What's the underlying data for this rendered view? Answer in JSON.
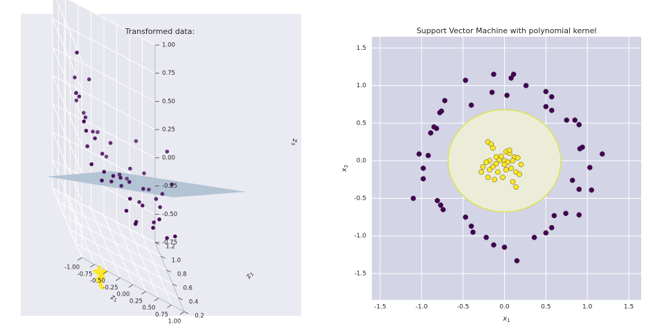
{
  "chart_data": [
    {
      "type": "scatter",
      "title": "Transformed data:",
      "xlabel": "z1",
      "ylabel": "z2",
      "zlabel": "z3",
      "xlim": [
        -1.0,
        1.0
      ],
      "ylim": [
        0.2,
        1.2
      ],
      "zlim": [
        -0.75,
        1.0
      ],
      "x_ticks": [
        "-1.00",
        "-0.75",
        "-0.50",
        "-0.25",
        "0.00",
        "0.25",
        "0.50",
        "0.75",
        "1.00"
      ],
      "y_ticks": [
        "0.2",
        "0.4",
        "0.6",
        "0.8",
        "1.0",
        "1.2"
      ],
      "z_ticks": [
        "1.00",
        "0.75",
        "0.50",
        "0.25",
        "0.00",
        "-0.25",
        "-0.50",
        "-0.75"
      ],
      "grid": true,
      "plane_color": "#a9bdd0",
      "class_colors": {
        "outer": "#440154",
        "inner": "#fde725"
      },
      "outer_points": [
        [
          -0.95,
          0.48,
          0.55
        ],
        [
          -0.9,
          0.3,
          0.42
        ],
        [
          -0.85,
          0.55,
          0.5
        ],
        [
          -0.8,
          0.4,
          0.3
        ],
        [
          -0.7,
          0.6,
          0.32
        ],
        [
          -0.6,
          0.45,
          0.25
        ],
        [
          -0.5,
          0.7,
          0.18
        ],
        [
          -0.78,
          0.25,
          0.1
        ],
        [
          -0.4,
          0.55,
          0.1
        ],
        [
          -0.3,
          0.35,
          0.05
        ],
        [
          -0.2,
          0.62,
          0.2
        ],
        [
          -0.1,
          0.45,
          0.02
        ],
        [
          0.0,
          0.3,
          -0.05
        ],
        [
          0.1,
          0.5,
          0.0
        ],
        [
          0.2,
          0.65,
          0.05
        ],
        [
          0.3,
          0.4,
          -0.1
        ],
        [
          0.4,
          0.55,
          -0.02
        ],
        [
          0.5,
          0.7,
          0.05
        ],
        [
          0.6,
          0.35,
          -0.12
        ],
        [
          0.7,
          0.5,
          -0.08
        ],
        [
          0.8,
          0.6,
          0.0
        ],
        [
          0.9,
          0.45,
          0.2
        ],
        [
          0.95,
          0.7,
          0.35
        ],
        [
          -0.65,
          0.75,
          0.28
        ],
        [
          -0.55,
          0.3,
          -0.02
        ],
        [
          -0.35,
          0.8,
          0.15
        ],
        [
          -0.15,
          0.85,
          -0.05
        ],
        [
          0.05,
          0.75,
          -0.1
        ],
        [
          0.25,
          0.85,
          -0.15
        ],
        [
          0.45,
          0.3,
          -0.2
        ],
        [
          0.65,
          0.8,
          -0.12
        ],
        [
          -0.88,
          0.65,
          0.6
        ],
        [
          -0.72,
          0.5,
          0.12
        ],
        [
          -0.45,
          0.4,
          0.02
        ],
        [
          0.15,
          0.35,
          -0.25
        ],
        [
          0.35,
          0.6,
          -0.18
        ],
        [
          0.55,
          0.45,
          -0.22
        ],
        [
          0.75,
          0.35,
          -0.25
        ],
        [
          -0.25,
          0.5,
          -0.08
        ],
        [
          0.0,
          0.6,
          -0.12
        ],
        [
          -0.98,
          0.4,
          0.95
        ],
        [
          -0.6,
          0.65,
          0.65
        ],
        [
          0.05,
          0.2,
          -0.2
        ],
        [
          0.4,
          0.8,
          0.25
        ],
        [
          -0.1,
          0.25,
          -0.15
        ],
        [
          0.65,
          0.55,
          -0.05
        ],
        [
          -0.82,
          0.7,
          0.38
        ],
        [
          0.85,
          0.25,
          -0.15
        ]
      ],
      "inner_points": [
        [
          -0.5,
          0.5,
          -1.0
        ],
        [
          -0.45,
          0.55,
          -0.98
        ],
        [
          -0.48,
          0.48,
          -1.02
        ],
        [
          -0.42,
          0.52,
          -0.96
        ],
        [
          -0.52,
          0.58,
          -0.99
        ],
        [
          -0.46,
          0.45,
          -1.04
        ],
        [
          -0.4,
          0.56,
          -0.95
        ],
        [
          -0.44,
          0.5,
          -1.0
        ],
        [
          -0.49,
          0.53,
          -0.97
        ],
        [
          -0.47,
          0.47,
          -1.03
        ],
        [
          -0.43,
          0.59,
          -0.94
        ],
        [
          -0.51,
          0.46,
          -1.01
        ],
        [
          -0.38,
          0.54,
          -0.93
        ],
        [
          -0.45,
          0.49,
          -1.05
        ],
        [
          -0.5,
          0.56,
          -0.98
        ],
        [
          -0.41,
          0.51,
          -0.97
        ],
        [
          -0.46,
          0.57,
          -0.96
        ],
        [
          -0.48,
          0.44,
          -1.03
        ],
        [
          -0.44,
          0.55,
          -0.99
        ],
        [
          -0.47,
          0.52,
          -1.0
        ],
        [
          -0.36,
          0.52,
          -0.92
        ],
        [
          -0.53,
          0.51,
          -1.02
        ]
      ]
    },
    {
      "type": "scatter",
      "title": "Support Vector Machine with polynomial kernel",
      "xlabel": "x1",
      "ylabel": "x2",
      "xlim": [
        -1.6,
        1.65
      ],
      "ylim": [
        -1.85,
        1.65
      ],
      "x_ticks": [
        -1.5,
        -1.0,
        -0.5,
        0.0,
        0.5,
        1.0,
        1.5
      ],
      "y_ticks": [
        1.5,
        1.0,
        0.5,
        0.0,
        -0.5,
        -1.0,
        -1.5
      ],
      "grid": true,
      "background_color": "#d3d4e5",
      "decision_region": {
        "shape": "circle",
        "center": [
          0.0,
          0.0
        ],
        "radius": 0.68,
        "fill": "#ecedd9",
        "edge_color": "#dee34e"
      },
      "series": [
        {
          "color": "#440154",
          "points": [
            [
              -0.13,
              1.15
            ],
            [
              0.11,
              1.15
            ],
            [
              0.08,
              1.1
            ],
            [
              -0.47,
              1.07
            ],
            [
              0.26,
              1.0
            ],
            [
              -0.15,
              0.91
            ],
            [
              0.5,
              0.92
            ],
            [
              0.03,
              0.87
            ],
            [
              0.57,
              0.85
            ],
            [
              -0.72,
              0.8
            ],
            [
              -0.4,
              0.74
            ],
            [
              0.5,
              0.72
            ],
            [
              -0.76,
              0.66
            ],
            [
              -0.78,
              0.64
            ],
            [
              0.57,
              0.67
            ],
            [
              0.75,
              0.54
            ],
            [
              0.85,
              0.54
            ],
            [
              0.9,
              0.48
            ],
            [
              -0.85,
              0.45
            ],
            [
              -0.82,
              0.43
            ],
            [
              -0.89,
              0.37
            ],
            [
              -1.03,
              0.09
            ],
            [
              -0.92,
              0.07
            ],
            [
              1.18,
              0.09
            ],
            [
              0.91,
              0.16
            ],
            [
              0.94,
              0.18
            ],
            [
              1.03,
              -0.09
            ],
            [
              -0.98,
              -0.1
            ],
            [
              -0.98,
              -0.24
            ],
            [
              0.82,
              -0.26
            ],
            [
              0.9,
              -0.38
            ],
            [
              1.05,
              -0.39
            ],
            [
              -1.1,
              -0.5
            ],
            [
              -0.81,
              -0.53
            ],
            [
              -0.77,
              -0.59
            ],
            [
              -0.74,
              -0.65
            ],
            [
              0.74,
              -0.7
            ],
            [
              0.9,
              -0.72
            ],
            [
              -0.47,
              -0.75
            ],
            [
              0.6,
              -0.73
            ],
            [
              -0.4,
              -0.87
            ],
            [
              0.57,
              -0.89
            ],
            [
              -0.38,
              -0.95
            ],
            [
              -0.13,
              -1.12
            ],
            [
              0.0,
              -1.15
            ],
            [
              -0.22,
              -1.02
            ],
            [
              0.36,
              -1.02
            ],
            [
              0.5,
              -0.96
            ],
            [
              0.15,
              -1.33
            ]
          ]
        },
        {
          "color": "#fde725",
          "points": [
            [
              -0.2,
              0.25
            ],
            [
              -0.16,
              0.22
            ],
            [
              -0.14,
              0.17
            ],
            [
              0.02,
              0.12
            ],
            [
              0.06,
              0.1
            ],
            [
              -0.1,
              0.05
            ],
            [
              0.12,
              0.05
            ],
            [
              0.16,
              0.04
            ],
            [
              -0.18,
              0.0
            ],
            [
              -0.06,
              0.01
            ],
            [
              0.0,
              0.0
            ],
            [
              0.04,
              -0.02
            ],
            [
              0.1,
              0.0
            ],
            [
              -0.22,
              -0.02
            ],
            [
              -0.26,
              -0.08
            ],
            [
              -0.14,
              -0.08
            ],
            [
              0.08,
              -0.1
            ],
            [
              -0.08,
              -0.15
            ],
            [
              0.02,
              -0.12
            ],
            [
              0.14,
              -0.15
            ],
            [
              -0.2,
              -0.22
            ],
            [
              -0.12,
              -0.25
            ],
            [
              -0.02,
              -0.22
            ],
            [
              0.1,
              -0.28
            ],
            [
              0.18,
              -0.18
            ],
            [
              -0.28,
              -0.15
            ],
            [
              0.14,
              -0.35
            ],
            [
              -0.18,
              -0.12
            ],
            [
              0.06,
              0.14
            ],
            [
              -0.04,
              0.06
            ],
            [
              0.2,
              -0.05
            ],
            [
              -0.1,
              -0.04
            ],
            [
              0.0,
              -0.05
            ]
          ]
        }
      ]
    }
  ]
}
